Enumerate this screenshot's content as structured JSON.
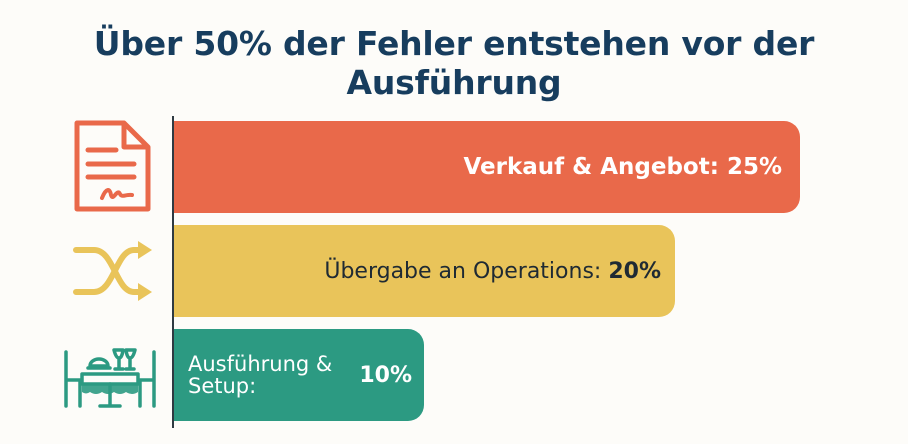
{
  "chart_data": {
    "type": "bar",
    "orientation": "horizontal",
    "title": "Über 50% der Fehler entstehen vor der Ausführung",
    "categories": [
      "Verkauf & Angebot",
      "Übergabe an Operations",
      "Ausführung & Setup"
    ],
    "values": [
      25,
      20,
      10
    ],
    "value_unit": "%",
    "labels": [
      {
        "text": "Verkauf & Angebot:",
        "value_text": "25%"
      },
      {
        "text": "Übergabe an Operations:",
        "value_text": "20%"
      },
      {
        "text": "Ausführung & Setup:",
        "value_text": "10%"
      }
    ],
    "colors": [
      "#e9694a",
      "#e9c45a",
      "#2c9a82"
    ],
    "icons": [
      "contract-document-icon",
      "shuffle-arrows-icon",
      "dining-table-icon"
    ],
    "xlim": [
      0,
      25
    ],
    "grid": false
  }
}
